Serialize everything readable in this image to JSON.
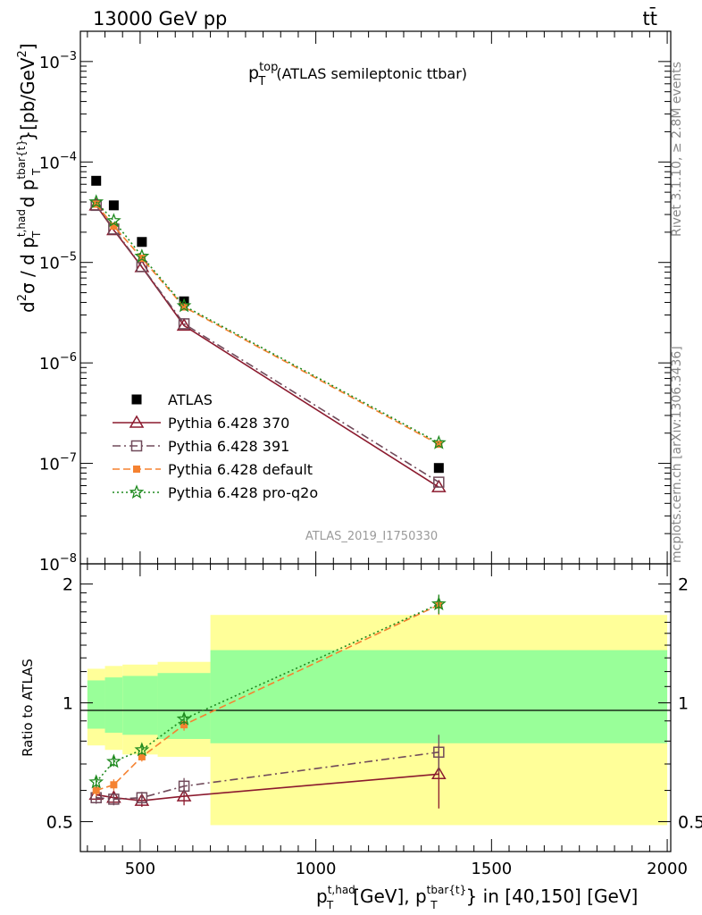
{
  "header": {
    "left": "13000 GeV pp",
    "right": "tt̄"
  },
  "side_labels": {
    "rivet": "Rivet 3.1.10, ≥ 2.8M events",
    "mcplots": "mcplots.cern.ch [arXiv:1306.3436]"
  },
  "watermark": "ATLAS_2019_I1750330",
  "chart_data": [
    {
      "type": "line",
      "panel": "main",
      "title": "p_T^top (ATLAS semileptonic ttbar)",
      "ylabel": "d²σ / d p_T^t,had d p_T^tbar{t} [pb/GeV²]",
      "yscale": "log",
      "ylim": [
        1e-08,
        0.002
      ],
      "xlim": [
        330,
        2010
      ],
      "yticks": [
        {
          "value": 1e-08,
          "label": "10^-8"
        },
        {
          "value": 1e-07,
          "label": "10^-7"
        },
        {
          "value": 1e-06,
          "label": "10^-6"
        },
        {
          "value": 1e-05,
          "label": "10^-5"
        },
        {
          "value": 0.0001,
          "label": "10^-4"
        },
        {
          "value": 0.001,
          "label": "10^-3"
        }
      ],
      "legend_position": "lower-left",
      "series": [
        {
          "name": "ATLAS",
          "color": "#000000",
          "marker": "filled-square",
          "line": "none",
          "x": [
            375,
            425,
            505,
            625,
            1350
          ],
          "y": [
            6.5e-05,
            3.7e-05,
            1.6e-05,
            4.1e-06,
            9e-08
          ]
        },
        {
          "name": "Pythia 6.428 370",
          "color": "#8b1a2e",
          "marker": "open-triangle",
          "line": "solid",
          "x": [
            375,
            425,
            505,
            625,
            1350
          ],
          "y": [
            3.7e-05,
            2.1e-05,
            9e-06,
            2.35e-06,
            5.8e-08
          ]
        },
        {
          "name": "Pythia 6.428 391",
          "color": "#704a5a",
          "marker": "open-square",
          "line": "dashdot",
          "x": [
            375,
            425,
            505,
            625,
            1350
          ],
          "y": [
            3.7e-05,
            2.15e-05,
            9.1e-06,
            2.45e-06,
            6.5e-08
          ]
        },
        {
          "name": "Pythia 6.428 default",
          "color": "#f58231",
          "marker": "filled-square-small",
          "line": "dashed",
          "x": [
            375,
            425,
            505,
            625,
            1350
          ],
          "y": [
            3.8e-05,
            2.3e-05,
            1.1e-05,
            3.6e-06,
            1.55e-07
          ]
        },
        {
          "name": "Pythia 6.428 pro-q2o",
          "color": "#1f8a1f",
          "marker": "star",
          "line": "dotted",
          "x": [
            375,
            425,
            505,
            625,
            1350
          ],
          "y": [
            4e-05,
            2.6e-05,
            1.15e-05,
            3.7e-06,
            1.6e-07
          ]
        }
      ]
    },
    {
      "type": "line",
      "panel": "ratio",
      "ylabel": "Ratio to ATLAS",
      "xlabel": "p_T^t,had [GeV], p_T^tbar{t} in [40,150] [GeV]",
      "ylim": [
        0.42,
        2.25
      ],
      "xlim": [
        330,
        2010
      ],
      "xticks": [
        500,
        1000,
        1500,
        2000
      ],
      "yticks": [
        0.5,
        1,
        2
      ],
      "reference_line": 1,
      "bands": [
        {
          "x0": 350,
          "x1": 400,
          "green": [
            0.86,
            1.14
          ],
          "yellow": [
            0.78,
            1.22
          ]
        },
        {
          "x0": 400,
          "x1": 450,
          "green": [
            0.84,
            1.16
          ],
          "yellow": [
            0.76,
            1.24
          ]
        },
        {
          "x0": 450,
          "x1": 550,
          "green": [
            0.83,
            1.17
          ],
          "yellow": [
            0.74,
            1.25
          ]
        },
        {
          "x0": 550,
          "x1": 700,
          "green": [
            0.81,
            1.19
          ],
          "yellow": [
            0.73,
            1.27
          ]
        },
        {
          "x0": 700,
          "x1": 2000,
          "green": [
            0.79,
            1.36
          ],
          "yellow": [
            0.49,
            1.67
          ]
        }
      ],
      "series": [
        {
          "name": "Pythia 6.428 370",
          "color": "#8b1a2e",
          "marker": "open-triangle",
          "line": "solid",
          "x": [
            375,
            425,
            505,
            625,
            1350
          ],
          "y": [
            0.585,
            0.575,
            0.565,
            0.58,
            0.66
          ],
          "err": [
            0.02,
            0.02,
            0.02,
            0.03,
            0.12
          ]
        },
        {
          "name": "Pythia 6.428 391",
          "color": "#704a5a",
          "marker": "open-square",
          "line": "dashdot",
          "x": [
            375,
            425,
            505,
            625,
            1350
          ],
          "y": [
            0.575,
            0.57,
            0.575,
            0.615,
            0.75
          ],
          "err": [
            0.02,
            0.02,
            0.02,
            0.03,
            0.08
          ]
        },
        {
          "name": "Pythia 6.428 default",
          "color": "#f58231",
          "marker": "filled-square-small",
          "line": "dashed",
          "x": [
            375,
            425,
            505,
            625,
            1350
          ],
          "y": [
            0.6,
            0.62,
            0.73,
            0.88,
            1.77
          ],
          "err": [
            0.02,
            0.02,
            0.02,
            0.03,
            0.1
          ]
        },
        {
          "name": "Pythia 6.428 pro-q2o",
          "color": "#1f8a1f",
          "marker": "star",
          "line": "dotted",
          "x": [
            375,
            425,
            505,
            625,
            1350
          ],
          "y": [
            0.63,
            0.71,
            0.76,
            0.91,
            1.78
          ],
          "err": [
            0.02,
            0.02,
            0.02,
            0.03,
            0.1
          ]
        }
      ]
    }
  ]
}
